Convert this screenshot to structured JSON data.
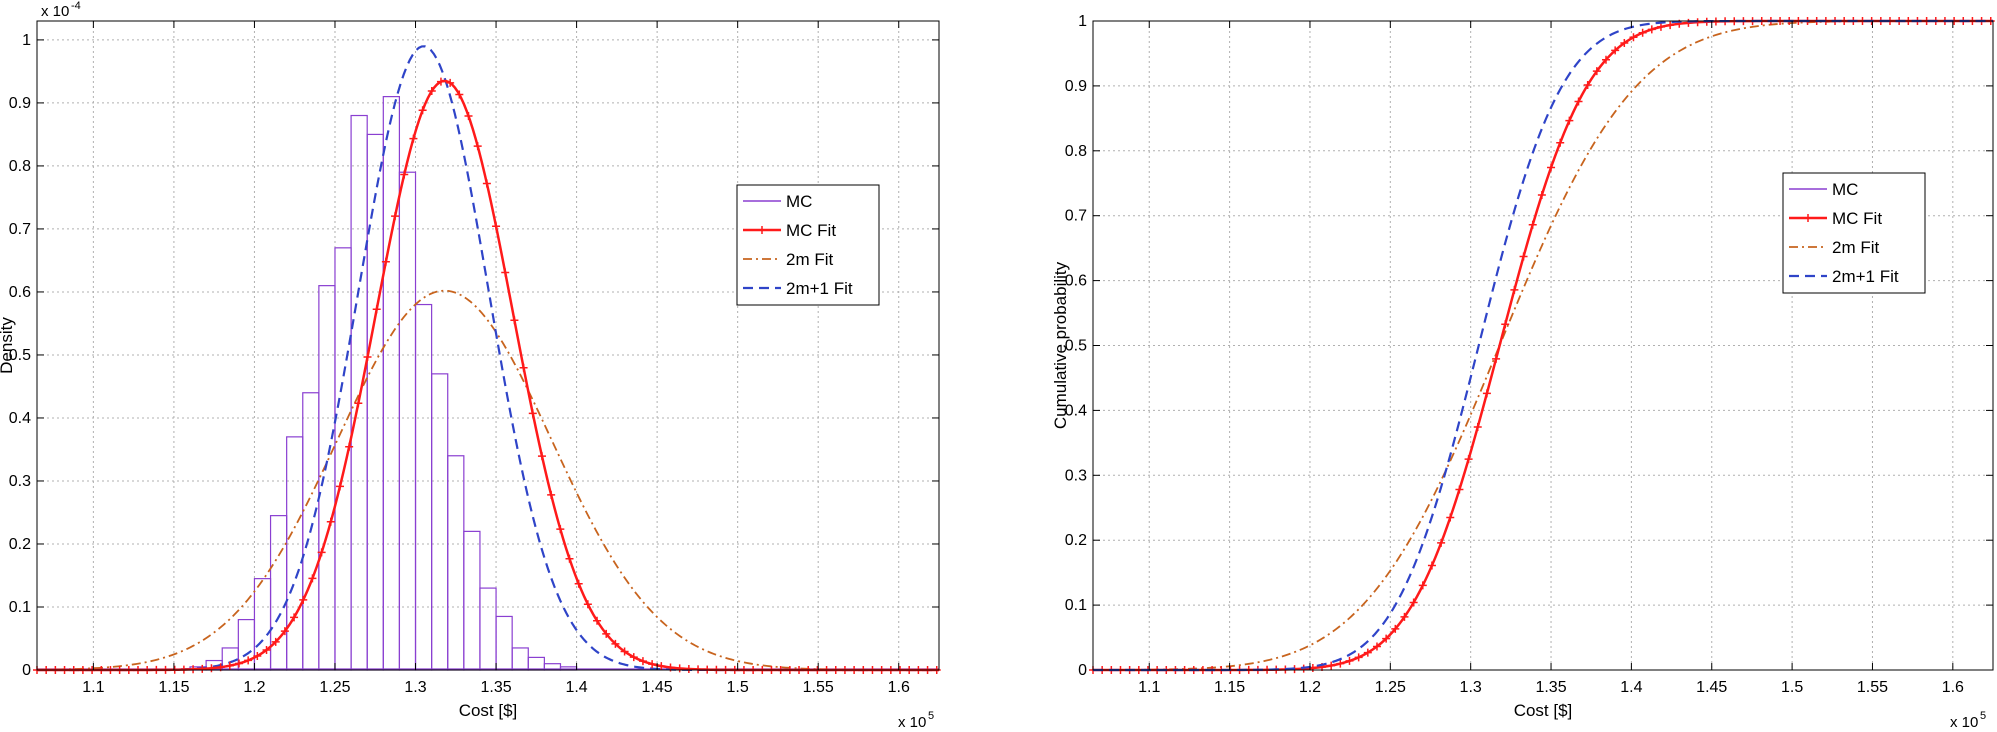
{
  "chart_data": [
    {
      "type": "histogram+line",
      "xlabel": "Cost [$]",
      "ylabel": "Density",
      "x_multiplier": "x 10",
      "x_multiplier_exp": "5",
      "y_multiplier": "x 10",
      "y_multiplier_exp": "-4",
      "xlim": [
        1.065,
        1.625
      ],
      "ylim": [
        0,
        1.03
      ],
      "x_ticks": [
        "1.1",
        "1.15",
        "1.2",
        "1.25",
        "1.3",
        "1.35",
        "1.4",
        "1.45",
        "1.5",
        "1.55",
        "1.6"
      ],
      "y_ticks": [
        "0",
        "0.1",
        "0.2",
        "0.3",
        "0.4",
        "0.5",
        "0.6",
        "0.7",
        "0.8",
        "0.9",
        "1"
      ],
      "grid": true,
      "legend_placement": "right",
      "legend": [
        "MC",
        "MC Fit",
        "2m Fit",
        "2m+1 Fit"
      ],
      "histogram": {
        "name": "MC",
        "bin_width": 0.01,
        "bin_start": 1.16,
        "heights": [
          0.005,
          0.015,
          0.035,
          0.08,
          0.145,
          0.245,
          0.37,
          0.44,
          0.61,
          0.67,
          0.88,
          0.85,
          0.91,
          0.79,
          0.58,
          0.47,
          0.34,
          0.22,
          0.13,
          0.085,
          0.035,
          0.02,
          0.01,
          0.005
        ]
      },
      "curves": [
        {
          "name": "MC Fit",
          "mean": 1.318,
          "std": 0.0425,
          "peak": 0.935,
          "color": "#ff1a1a",
          "style": "solid-plus"
        },
        {
          "name": "2m Fit",
          "mean": 1.318,
          "std": 0.0665,
          "peak": 0.602,
          "color": "#c8641e",
          "style": "dashdot"
        },
        {
          "name": "2m+1 Fit",
          "mean": 1.305,
          "std": 0.0405,
          "peak": 0.99,
          "color": "#2f44c8",
          "style": "dashed"
        }
      ],
      "colors": {
        "mc": "#8a3fd1"
      }
    },
    {
      "type": "line",
      "xlabel": "Cost [$]",
      "ylabel": "Cumulative probability",
      "x_multiplier": "x 10",
      "x_multiplier_exp": "5",
      "xlim": [
        1.065,
        1.625
      ],
      "ylim": [
        0,
        1
      ],
      "x_ticks": [
        "1.1",
        "1.15",
        "1.2",
        "1.25",
        "1.3",
        "1.35",
        "1.4",
        "1.45",
        "1.5",
        "1.55",
        "1.6"
      ],
      "y_ticks": [
        "0",
        "0.1",
        "0.2",
        "0.3",
        "0.4",
        "0.5",
        "0.6",
        "0.7",
        "0.8",
        "0.9",
        "1"
      ],
      "grid": true,
      "legend_placement": "right",
      "legend": [
        "MC",
        "MC Fit",
        "2m Fit",
        "2m+1 Fit"
      ],
      "curves": [
        {
          "name": "MC",
          "mean": 1.318,
          "std": 0.0425,
          "color": "#8a3fd1",
          "style": "solid"
        },
        {
          "name": "MC Fit",
          "mean": 1.318,
          "std": 0.0425,
          "color": "#ff1a1a",
          "style": "solid-plus"
        },
        {
          "name": "2m Fit",
          "mean": 1.318,
          "std": 0.0665,
          "color": "#c8641e",
          "style": "dashdot"
        },
        {
          "name": "2m+1 Fit",
          "mean": 1.305,
          "std": 0.0405,
          "color": "#2f44c8",
          "style": "dashed"
        }
      ]
    }
  ]
}
